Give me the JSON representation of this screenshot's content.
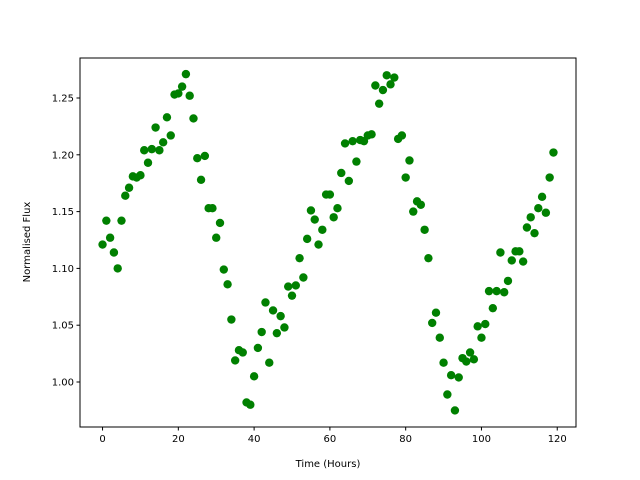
{
  "chart_data": {
    "type": "scatter",
    "xlabel": "Time (Hours)",
    "ylabel": "Normalised Flux",
    "color": "#008000",
    "x": [
      0,
      1,
      2,
      3,
      4,
      5,
      6,
      7,
      8,
      9,
      10,
      11,
      12,
      13,
      14,
      15,
      16,
      17,
      18,
      19,
      20,
      21,
      22,
      23,
      24,
      25,
      26,
      27,
      28,
      29,
      30,
      31,
      32,
      33,
      34,
      35,
      36,
      37,
      38,
      39,
      40,
      41,
      42,
      43,
      44,
      45,
      46,
      47,
      48,
      49,
      50,
      51,
      52,
      53,
      54,
      55,
      56,
      57,
      58,
      59,
      60,
      61,
      62,
      63,
      64,
      65,
      66,
      67,
      68,
      69,
      70,
      71,
      72,
      73,
      74,
      75,
      76,
      77,
      78,
      79,
      80,
      81,
      82,
      83,
      84,
      85,
      86,
      87,
      88,
      89,
      90,
      91,
      92,
      93,
      94,
      95,
      96,
      97,
      98,
      99,
      100,
      101,
      102,
      103,
      104,
      105,
      106,
      107,
      108,
      109,
      110,
      111,
      112,
      113,
      114,
      115,
      116,
      117,
      118,
      119
    ],
    "values": [
      1.121,
      1.142,
      1.127,
      1.114,
      1.1,
      1.142,
      1.164,
      1.171,
      1.181,
      1.18,
      1.182,
      1.204,
      1.193,
      1.205,
      1.224,
      1.204,
      1.211,
      1.233,
      1.217,
      1.253,
      1.254,
      1.26,
      1.271,
      1.252,
      1.232,
      1.197,
      1.178,
      1.199,
      1.153,
      1.153,
      1.127,
      1.14,
      1.099,
      1.086,
      1.055,
      1.019,
      1.028,
      1.026,
      0.982,
      0.98,
      1.005,
      1.03,
      1.044,
      1.07,
      1.017,
      1.063,
      1.043,
      1.058,
      1.048,
      1.084,
      1.076,
      1.085,
      1.109,
      1.092,
      1.126,
      1.151,
      1.143,
      1.121,
      1.134,
      1.165,
      1.165,
      1.145,
      1.153,
      1.184,
      1.21,
      1.177,
      1.212,
      1.194,
      1.213,
      1.212,
      1.217,
      1.218,
      1.261,
      1.245,
      1.257,
      1.27,
      1.262,
      1.268,
      1.214,
      1.217,
      1.18,
      1.195,
      1.15,
      1.159,
      1.156,
      1.134,
      1.109,
      1.052,
      1.061,
      1.039,
      1.017,
      0.989,
      1.006,
      0.975,
      1.004,
      1.021,
      1.018,
      1.026,
      1.02,
      1.049,
      1.039,
      1.051,
      1.08,
      1.065,
      1.08,
      1.114,
      1.079,
      1.089,
      1.107,
      1.115,
      1.115,
      1.106,
      1.136,
      1.145,
      1.131,
      1.153,
      1.163,
      1.149,
      1.18,
      1.202
    ],
    "xlim": [
      -5.95,
      124.95
    ],
    "ylim": [
      0.9604,
      1.2852
    ],
    "xticks": [
      0,
      20,
      40,
      60,
      80,
      100,
      120
    ],
    "yticks": [
      {
        "value": 1,
        "label": "1.00"
      },
      {
        "value": 1.05,
        "label": "1.05"
      },
      {
        "value": 1.1,
        "label": "1.10"
      },
      {
        "value": 1.15,
        "label": "1.15"
      },
      {
        "value": 1.2,
        "label": "1.20"
      },
      {
        "value": 1.25,
        "label": "1.25"
      }
    ]
  }
}
